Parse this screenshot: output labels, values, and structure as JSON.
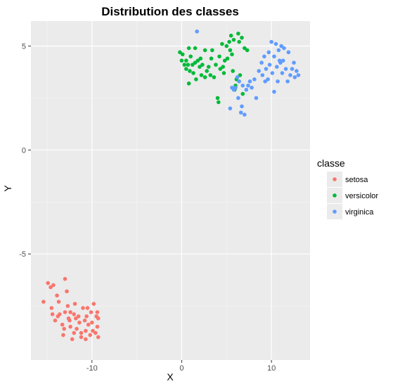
{
  "chart_data": {
    "type": "scatter",
    "title": "Distribution des classes",
    "xlabel": "X",
    "ylabel": "Y",
    "xlim": [
      -16.8,
      14.3
    ],
    "ylim": [
      -10.1,
      6.2
    ],
    "x_ticks": [
      {
        "value": -10,
        "label": "-10"
      },
      {
        "value": 0,
        "label": "0"
      },
      {
        "value": 10,
        "label": "10"
      }
    ],
    "y_ticks": [
      {
        "value": -5,
        "label": "-5"
      },
      {
        "value": 0,
        "label": "0"
      },
      {
        "value": 5,
        "label": "5"
      }
    ],
    "grid": true,
    "legend": {
      "title": "classe",
      "position": "right"
    },
    "series": [
      {
        "name": "setosa",
        "color": "#F8766D",
        "points": [
          [
            -15.4,
            -7.3
          ],
          [
            -14.9,
            -6.4
          ],
          [
            -14.6,
            -6.6
          ],
          [
            -14.5,
            -7.6
          ],
          [
            -14.3,
            -6.5
          ],
          [
            -14.4,
            -7.9
          ],
          [
            -14.1,
            -8.2
          ],
          [
            -13.9,
            -7.0
          ],
          [
            -13.7,
            -7.3
          ],
          [
            -13.8,
            -8.0
          ],
          [
            -13.6,
            -7.9
          ],
          [
            -13.3,
            -8.4
          ],
          [
            -13.2,
            -8.9
          ],
          [
            -13.1,
            -8.6
          ],
          [
            -13.0,
            -6.2
          ],
          [
            -13.0,
            -7.8
          ],
          [
            -12.8,
            -6.8
          ],
          [
            -12.7,
            -7.5
          ],
          [
            -12.6,
            -8.1
          ],
          [
            -12.4,
            -7.8
          ],
          [
            -12.4,
            -8.5
          ],
          [
            -12.2,
            -9.1
          ],
          [
            -12.0,
            -7.9
          ],
          [
            -12.0,
            -8.8
          ],
          [
            -11.9,
            -7.4
          ],
          [
            -11.8,
            -8.1
          ],
          [
            -11.7,
            -8.6
          ],
          [
            -11.5,
            -8.0
          ],
          [
            -11.4,
            -8.3
          ],
          [
            -11.2,
            -8.8
          ],
          [
            -11.2,
            -9.0
          ],
          [
            -11.0,
            -7.6
          ],
          [
            -10.8,
            -8.2
          ],
          [
            -10.7,
            -8.7
          ],
          [
            -10.6,
            -8.0
          ],
          [
            -10.5,
            -7.6
          ],
          [
            -10.4,
            -8.4
          ],
          [
            -10.2,
            -8.9
          ],
          [
            -10.1,
            -7.8
          ],
          [
            -10.0,
            -8.3
          ],
          [
            -9.9,
            -8.7
          ],
          [
            -9.8,
            -7.4
          ],
          [
            -9.6,
            -8.8
          ],
          [
            -9.5,
            -8.0
          ],
          [
            -9.4,
            -7.8
          ],
          [
            -9.3,
            -8.1
          ],
          [
            -9.3,
            -9.0
          ],
          [
            -10.7,
            -9.1
          ],
          [
            -9.4,
            -8.5
          ],
          [
            -12.5,
            -8.2
          ]
        ]
      },
      {
        "name": "versicolor",
        "color": "#00BA38",
        "points": [
          [
            -0.2,
            4.7
          ],
          [
            0.0,
            4.3
          ],
          [
            0.1,
            4.6
          ],
          [
            0.3,
            4.1
          ],
          [
            0.5,
            3.9
          ],
          [
            0.5,
            4.3
          ],
          [
            0.7,
            4.1
          ],
          [
            0.8,
            4.9
          ],
          [
            0.8,
            3.2
          ],
          [
            0.9,
            3.8
          ],
          [
            1.0,
            4.5
          ],
          [
            1.2,
            4.1
          ],
          [
            1.3,
            3.7
          ],
          [
            1.5,
            4.2
          ],
          [
            1.5,
            4.9
          ],
          [
            1.6,
            3.4
          ],
          [
            1.8,
            4.3
          ],
          [
            2.0,
            4.0
          ],
          [
            2.1,
            4.4
          ],
          [
            2.2,
            3.6
          ],
          [
            2.3,
            4.1
          ],
          [
            2.6,
            4.8
          ],
          [
            2.6,
            3.5
          ],
          [
            2.8,
            3.8
          ],
          [
            3.0,
            4.0
          ],
          [
            3.2,
            3.6
          ],
          [
            3.3,
            4.4
          ],
          [
            3.4,
            4.8
          ],
          [
            3.6,
            3.5
          ],
          [
            3.8,
            4.1
          ],
          [
            4.0,
            2.5
          ],
          [
            4.1,
            2.3
          ],
          [
            4.2,
            4.5
          ],
          [
            4.3,
            3.9
          ],
          [
            4.5,
            5.1
          ],
          [
            4.6,
            4.0
          ],
          [
            4.7,
            3.7
          ],
          [
            4.8,
            4.3
          ],
          [
            5.0,
            5.0
          ],
          [
            5.1,
            4.4
          ],
          [
            5.3,
            5.2
          ],
          [
            5.4,
            4.8
          ],
          [
            5.5,
            5.5
          ],
          [
            5.6,
            4.6
          ],
          [
            5.7,
            3.8
          ],
          [
            5.8,
            5.3
          ],
          [
            5.9,
            2.9
          ],
          [
            6.0,
            3.1
          ],
          [
            6.1,
            3.4
          ],
          [
            6.3,
            5.6
          ],
          [
            6.4,
            5.2
          ],
          [
            6.5,
            3.6
          ],
          [
            6.7,
            5.4
          ],
          [
            6.8,
            2.7
          ],
          [
            7.0,
            4.9
          ],
          [
            7.3,
            4.8
          ]
        ]
      },
      {
        "name": "virginica",
        "color": "#619CFF",
        "points": [
          [
            1.7,
            5.7
          ],
          [
            5.4,
            2.0
          ],
          [
            5.6,
            3.0
          ],
          [
            5.8,
            2.9
          ],
          [
            6.0,
            3.0
          ],
          [
            6.2,
            3.5
          ],
          [
            6.3,
            2.5
          ],
          [
            6.4,
            3.3
          ],
          [
            6.6,
            1.8
          ],
          [
            6.7,
            2.1
          ],
          [
            6.8,
            3.1
          ],
          [
            7.0,
            1.7
          ],
          [
            7.2,
            2.9
          ],
          [
            7.4,
            3.1
          ],
          [
            7.8,
            3.0
          ],
          [
            8.1,
            3.4
          ],
          [
            8.3,
            2.5
          ],
          [
            8.6,
            3.8
          ],
          [
            8.9,
            4.2
          ],
          [
            9.0,
            3.6
          ],
          [
            9.2,
            4.5
          ],
          [
            9.4,
            3.9
          ],
          [
            9.6,
            3.4
          ],
          [
            9.7,
            4.7
          ],
          [
            9.8,
            4.1
          ],
          [
            10.0,
            5.2
          ],
          [
            10.1,
            3.7
          ],
          [
            10.3,
            4.5
          ],
          [
            10.3,
            2.8
          ],
          [
            10.5,
            5.1
          ],
          [
            10.6,
            4.0
          ],
          [
            10.7,
            3.3
          ],
          [
            10.8,
            4.8
          ],
          [
            11.0,
            4.2
          ],
          [
            11.2,
            3.7
          ],
          [
            11.3,
            4.3
          ],
          [
            11.4,
            4.9
          ],
          [
            11.6,
            3.9
          ],
          [
            11.8,
            3.3
          ],
          [
            11.9,
            4.7
          ],
          [
            12.1,
            3.6
          ],
          [
            12.3,
            3.9
          ],
          [
            12.5,
            4.2
          ],
          [
            12.6,
            3.5
          ],
          [
            12.8,
            3.8
          ],
          [
            13.0,
            3.6
          ],
          [
            11.1,
            5.0
          ],
          [
            9.3,
            3.3
          ],
          [
            10.9,
            4.3
          ],
          [
            7.6,
            3.3
          ]
        ]
      }
    ]
  }
}
